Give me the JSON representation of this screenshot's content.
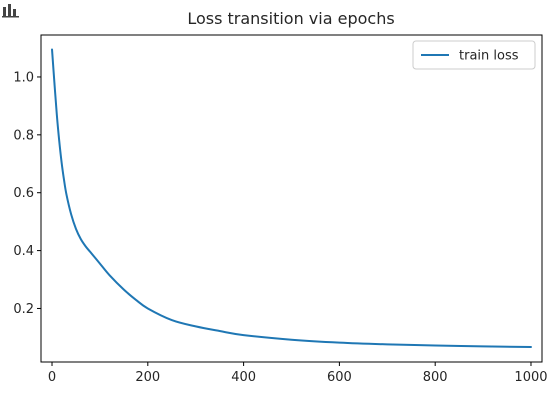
{
  "toolbar": {
    "icon": "bar-chart-icon"
  },
  "chart_data": {
    "type": "line",
    "title": "Loss transition via epochs",
    "xlabel": "",
    "ylabel": "",
    "xlim": [
      -23,
      1023
    ],
    "ylim": [
      0.015,
      1.145
    ],
    "xticks": [
      0,
      200,
      400,
      600,
      800,
      1000
    ],
    "xtick_labels": [
      "0",
      "200",
      "400",
      "600",
      "800",
      "1000"
    ],
    "yticks": [
      0.2,
      0.4,
      0.6,
      0.8,
      1.0
    ],
    "ytick_labels": [
      "0.2",
      "0.4",
      "0.6",
      "0.8",
      "1.0"
    ],
    "grid": false,
    "legend_position": "top-right",
    "series": [
      {
        "name": "train loss",
        "color": "#1f77b4",
        "x": [
          0,
          5,
          10,
          15,
          20,
          25,
          30,
          40,
          50,
          60,
          70,
          80,
          100,
          120,
          150,
          175,
          200,
          250,
          300,
          350,
          400,
          500,
          600,
          700,
          800,
          900,
          1000
        ],
        "y": [
          1.095,
          0.98,
          0.87,
          0.78,
          0.705,
          0.645,
          0.595,
          0.525,
          0.475,
          0.44,
          0.415,
          0.395,
          0.355,
          0.315,
          0.265,
          0.23,
          0.2,
          0.16,
          0.138,
          0.122,
          0.108,
          0.092,
          0.082,
          0.076,
          0.072,
          0.069,
          0.067
        ]
      }
    ]
  }
}
